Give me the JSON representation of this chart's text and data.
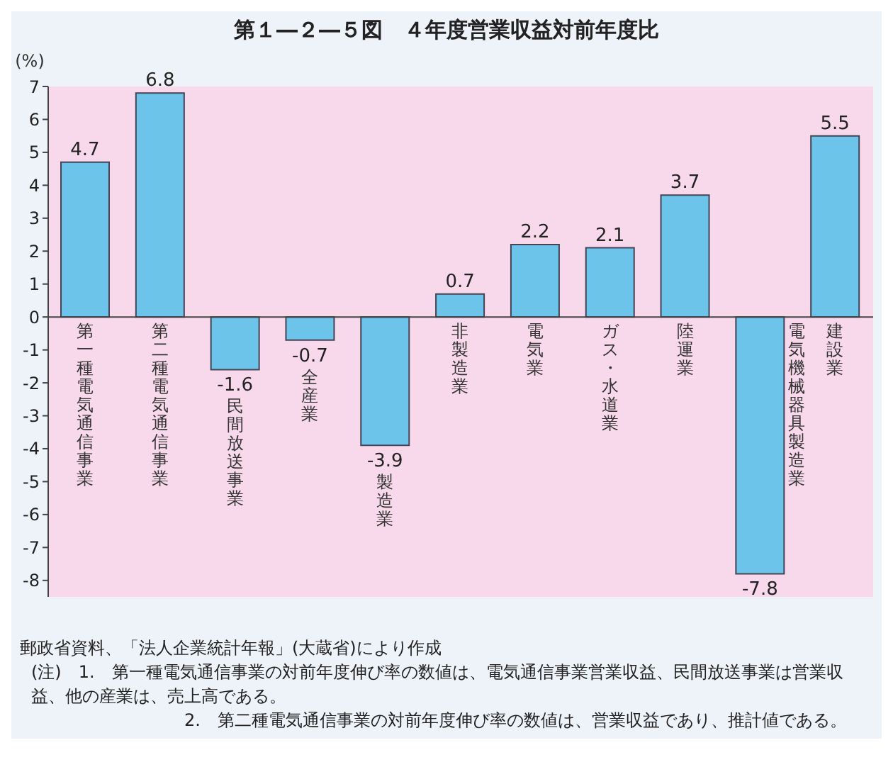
{
  "chart_data": {
    "type": "bar",
    "title": "第１―２―５図　４年度営業収益対前年度比",
    "ylabel": "(%)",
    "categories": [
      "第一種電気通信事業",
      "第二種電気通信事業",
      "民間放送事業",
      "全産業",
      "製造業",
      "非製造業",
      "電気業",
      "ガス・水道業",
      "陸運業",
      "電気機械器具製造業",
      "建設業"
    ],
    "values": [
      4.7,
      6.8,
      -1.6,
      -0.7,
      -3.9,
      0.7,
      2.2,
      2.1,
      3.7,
      -7.8,
      5.5
    ],
    "color": "#6cc4ea",
    "data_labels": true,
    "grid": false,
    "ylim": [
      -8.5,
      7
    ],
    "yticks": [
      -8,
      -7,
      -6,
      -5,
      -4,
      -3,
      -2,
      -1,
      0,
      1,
      2,
      3,
      4,
      5,
      6,
      7
    ],
    "annotations": [
      "郵政省資料、「法人企業統計年報」(大蔵省)により作成",
      "(注)　1.　第一種電気通信事業の対前年度伸び率の数値は、電気通信事業営業収益、民間放送事業は営業収益、他の産業は、売上高である。",
      "2.　第二種電気通信事業の対前年度伸び率の数値は、営業収益であり、推計値である。"
    ]
  }
}
